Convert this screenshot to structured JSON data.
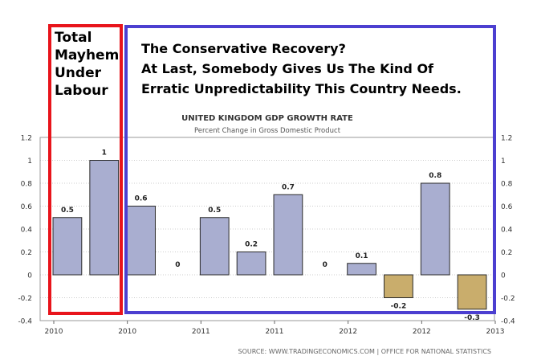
{
  "annotations": {
    "left_box_lines": [
      "Total",
      "Mayhem",
      "Under",
      "Labour"
    ],
    "right_box_lines": [
      "The Conservative Recovery?",
      "At Last, Somebody Gives Us The Kind Of",
      "Erratic Unpredictability This Country Needs."
    ],
    "left_box_color": "#e8141b",
    "right_box_color": "#4c3fd0"
  },
  "footer": {
    "source": "SOURCE: WWW.TRADINGECONOMICS.COM  |  OFFICE FOR NATIONAL STATISTICS"
  },
  "chart_data": {
    "type": "bar",
    "title": "UNITED KINGDOM GDP GROWTH RATE",
    "subtitle": "Percent Change in Gross Domestic Product",
    "xlabel": "",
    "ylabel": "",
    "ylim": [
      -0.4,
      1.2
    ],
    "yticks": [
      "1.2",
      "1",
      "0.8",
      "0.6",
      "0.4",
      "0.2",
      "0",
      "-0.2",
      "-0.4"
    ],
    "xtick_labels": [
      "2010",
      "2010",
      "2011",
      "2011",
      "2012",
      "2012",
      "2013"
    ],
    "values": [
      0.5,
      1,
      0.6,
      0,
      0.5,
      0.2,
      0.7,
      0,
      0.1,
      -0.2,
      0.8,
      -0.3
    ],
    "data_labels": [
      "0.5",
      "1",
      "0.6",
      "0",
      "0.5",
      "0.2",
      "0.7",
      "0",
      "0.1",
      "-0.2",
      "0.8",
      "-0.3"
    ],
    "grid": true,
    "colors": {
      "positive": "#a9aed0",
      "negative": "#c9ad6c",
      "grid": "#cccccc"
    }
  }
}
